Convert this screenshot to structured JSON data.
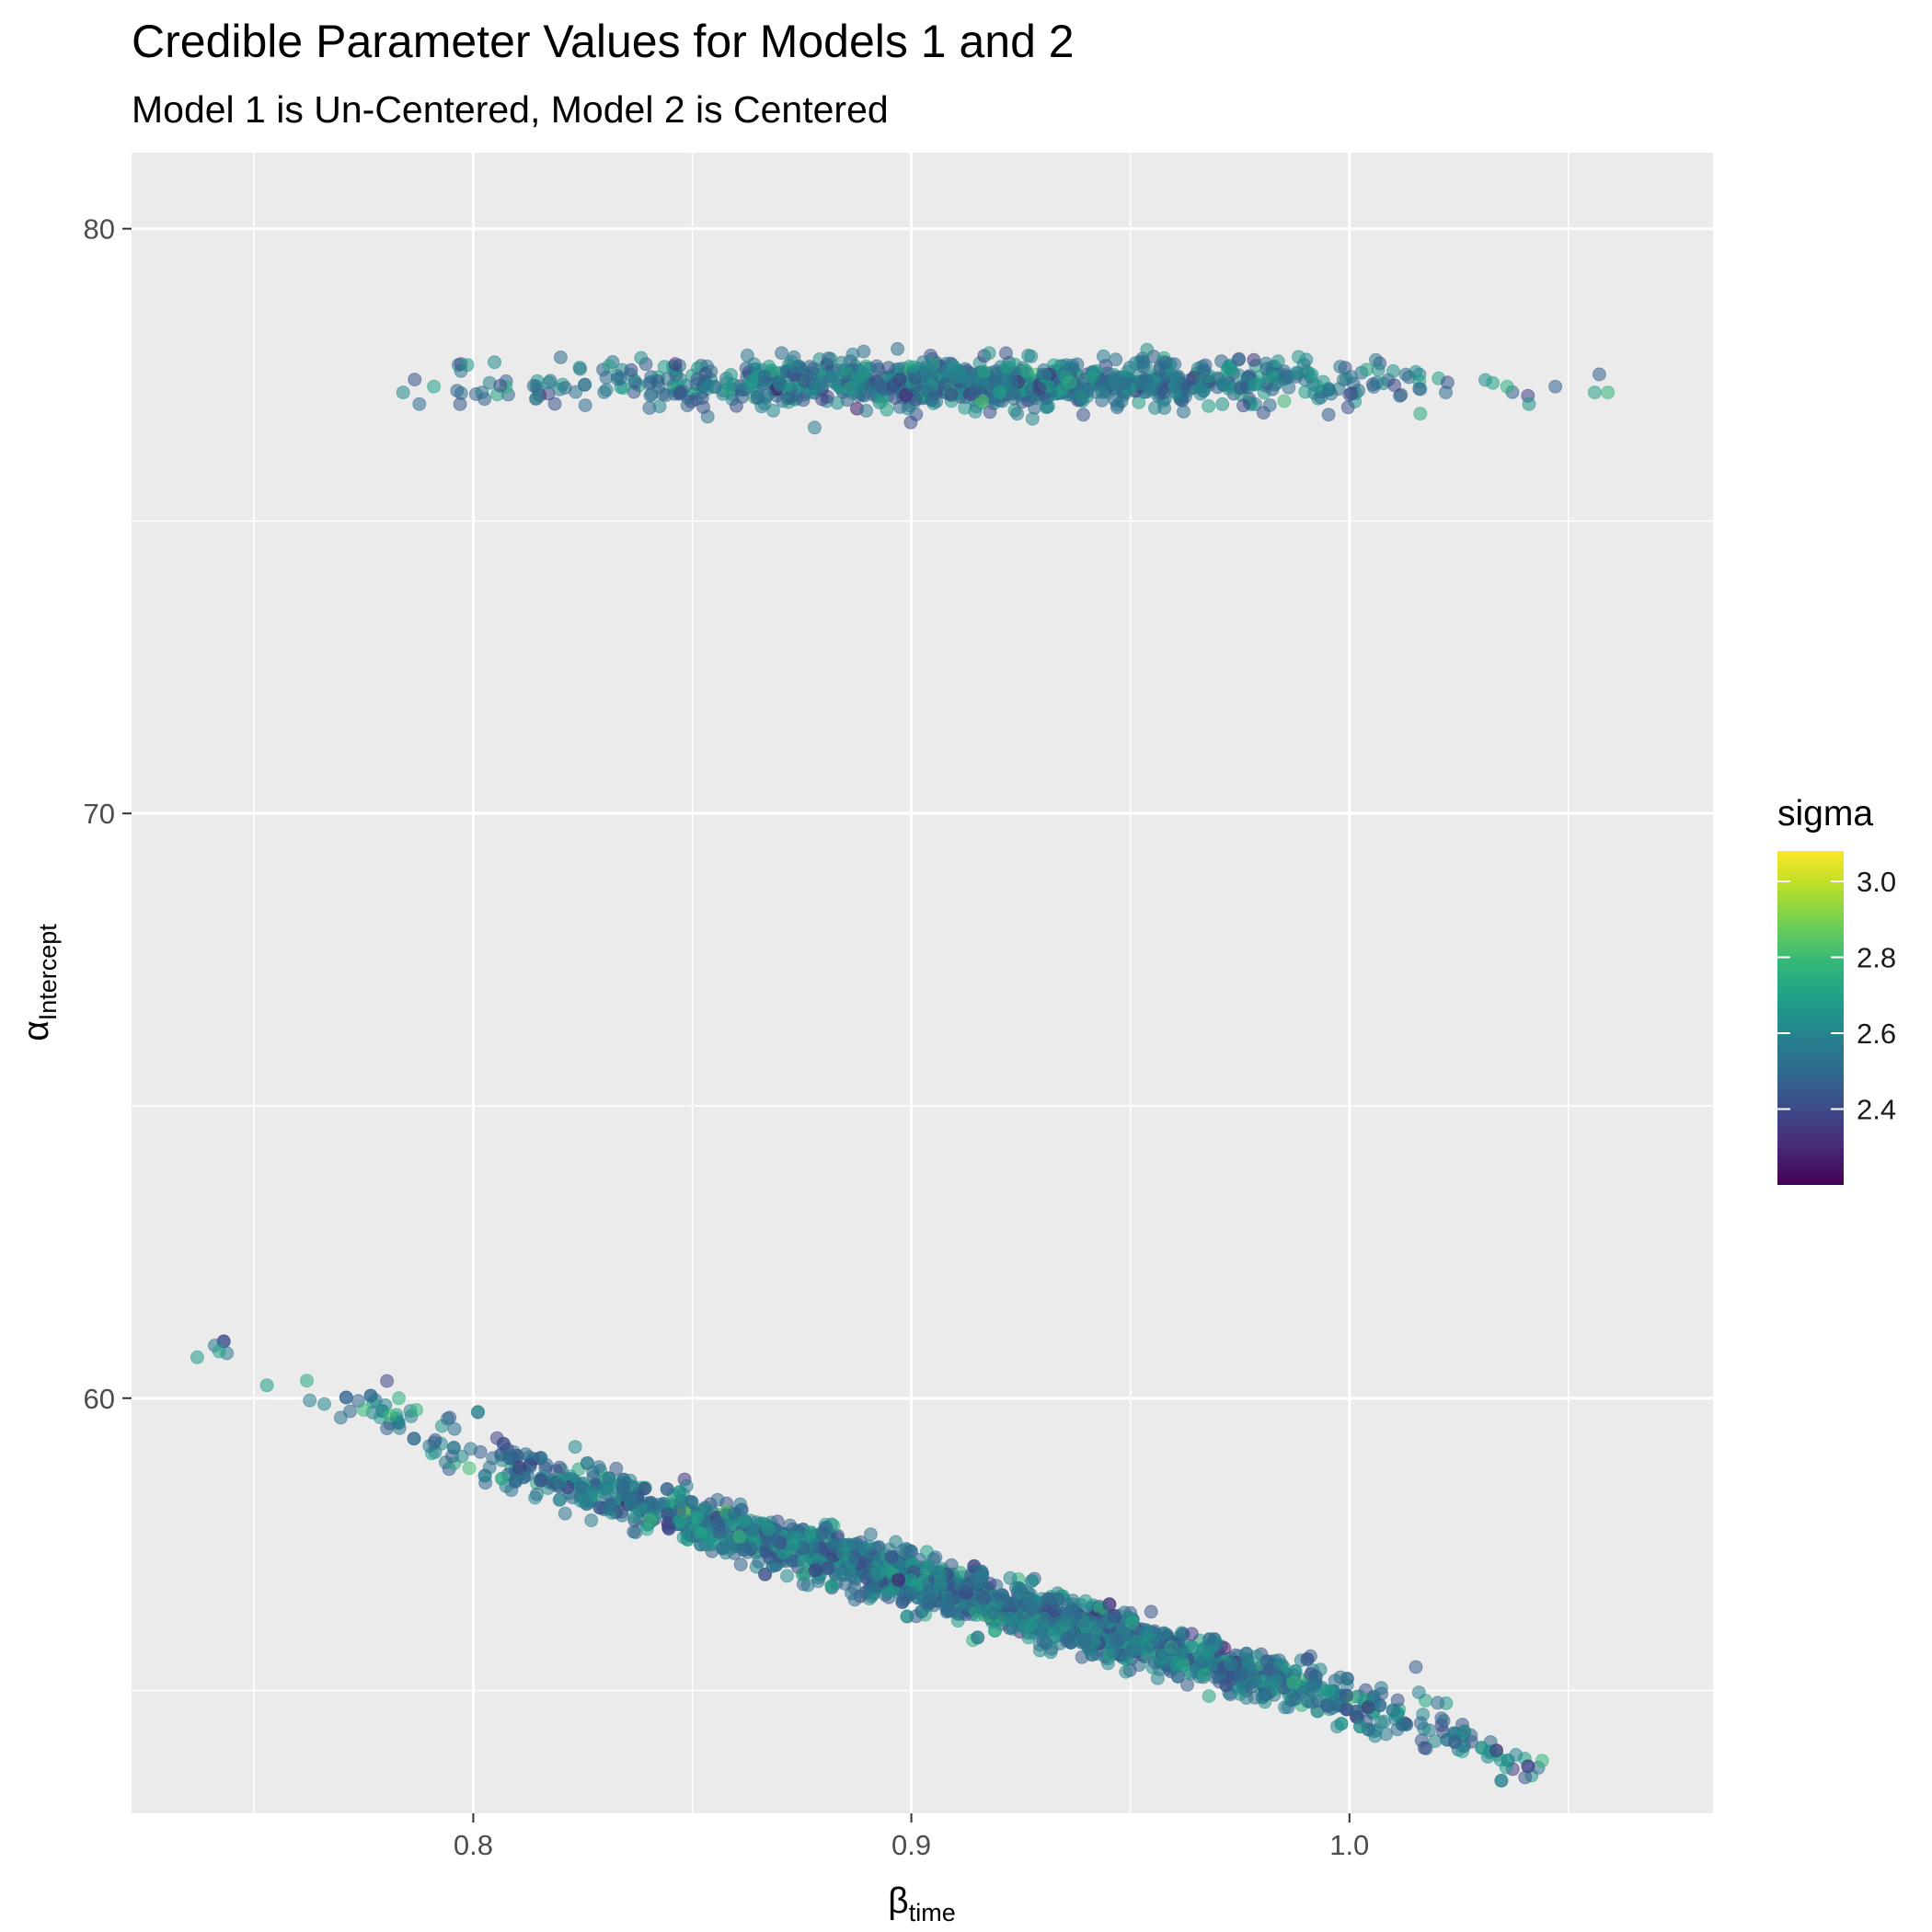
{
  "chart_data": {
    "type": "scatter",
    "title": "Credible Parameter Values for Models 1 and 2",
    "subtitle": "Model 1 is Un-Centered, Model 2 is Centered",
    "xlabel": {
      "symbol": "β",
      "subscript": "time"
    },
    "ylabel": {
      "symbol": "α",
      "subscript": "Intercept"
    },
    "xlim": [
      0.722,
      1.083
    ],
    "ylim": [
      52.9,
      81.3
    ],
    "x_ticks": [
      0.8,
      0.9,
      1.0
    ],
    "x_tick_labels": [
      "0.8",
      "0.9",
      "1.0"
    ],
    "y_ticks": [
      60,
      70,
      80
    ],
    "y_tick_labels": [
      "60",
      "70",
      "80"
    ],
    "grid": true,
    "point_alpha": 0.55,
    "legend": {
      "title": "sigma",
      "position": "right",
      "range": [
        2.2,
        3.08
      ],
      "ticks": [
        2.4,
        2.6,
        2.8,
        3.0
      ],
      "tick_labels": [
        "2.4",
        "2.6",
        "2.8",
        "3.0"
      ],
      "palette": [
        "#440154",
        "#482878",
        "#3e4989",
        "#31688e",
        "#26828e",
        "#1f9e89",
        "#35b779",
        "#6ece58",
        "#b5de2b",
        "#fde725"
      ]
    },
    "series": [
      {
        "name": "",
        "distribution": "horizontal band",
        "n_points": 1100,
        "x_center": 0.915,
        "x_sd": 0.045,
        "x_range": [
          0.784,
          1.059
        ],
        "y_center": 77.35,
        "y_sd": 0.2,
        "sigma_mean": 2.55,
        "sigma_sd": 0.1
      },
      {
        "name": "",
        "distribution": "diagonal band",
        "n_points": 2400,
        "x_center": 0.91,
        "x_sd": 0.055,
        "x_range": [
          0.737,
          1.044
        ],
        "y_at_x": [
          [
            0.74,
            60.8
          ],
          [
            0.8,
            59.0
          ],
          [
            0.9,
            56.9
          ],
          [
            1.0,
            54.8
          ],
          [
            1.04,
            53.9
          ]
        ],
        "y_resid_sd": 0.22,
        "sigma_mean": 2.55,
        "sigma_sd": 0.1
      }
    ],
    "highlighted_points": [
      {
        "x": 0.784,
        "y": 77.2,
        "sigma": 2.62
      },
      {
        "x": 0.791,
        "y": 77.3,
        "sigma": 2.7
      },
      {
        "x": 0.797,
        "y": 77.0,
        "sigma": 2.45
      },
      {
        "x": 0.802,
        "y": 77.2,
        "sigma": 2.55
      },
      {
        "x": 1.022,
        "y": 77.2,
        "sigma": 2.5
      },
      {
        "x": 1.036,
        "y": 77.3,
        "sigma": 2.75
      },
      {
        "x": 1.041,
        "y": 77.0,
        "sigma": 2.65
      },
      {
        "x": 1.047,
        "y": 77.3,
        "sigma": 2.48
      },
      {
        "x": 1.056,
        "y": 77.2,
        "sigma": 2.7
      },
      {
        "x": 1.059,
        "y": 77.2,
        "sigma": 2.78
      },
      {
        "x": 0.737,
        "y": 60.7,
        "sigma": 2.68
      },
      {
        "x": 0.741,
        "y": 60.9,
        "sigma": 2.55
      },
      {
        "x": 0.742,
        "y": 60.8,
        "sigma": 2.7
      },
      {
        "x": 0.762,
        "y": 60.3,
        "sigma": 2.72
      },
      {
        "x": 0.766,
        "y": 59.9,
        "sigma": 2.6
      },
      {
        "x": 0.775,
        "y": 59.8,
        "sigma": 2.78
      },
      {
        "x": 0.781,
        "y": 59.7,
        "sigma": 2.8
      },
      {
        "x": 0.783,
        "y": 60.0,
        "sigma": 2.74
      },
      {
        "x": 0.787,
        "y": 59.8,
        "sigma": 2.76
      },
      {
        "x": 1.038,
        "y": 53.9,
        "sigma": 2.6
      },
      {
        "x": 1.044,
        "y": 53.8,
        "sigma": 2.78
      }
    ]
  }
}
